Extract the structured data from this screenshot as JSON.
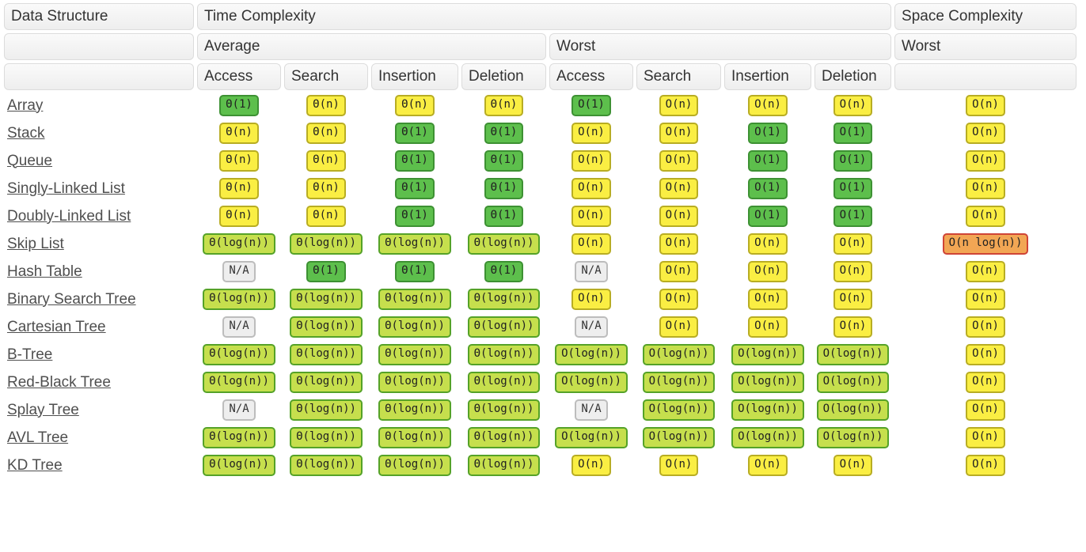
{
  "header": {
    "data_structure": "Data Structure",
    "time_complexity": "Time Complexity",
    "space_complexity": "Space Complexity",
    "average": "Average",
    "worst": "Worst",
    "space_worst": "Worst",
    "ops": [
      "Access",
      "Search",
      "Insertion",
      "Deletion"
    ]
  },
  "colors": {
    "green": "#5dbf4c",
    "yellow": "#faee43",
    "yellow_green": "#c6df4d",
    "orange": "#f2a654",
    "na_gray": "#eeeeee",
    "header_gray": "#f4f4f4",
    "link_text": "#4f4f4f"
  },
  "rows": [
    {
      "name": "Array",
      "average": [
        {
          "text": "Θ(1)",
          "level": "green"
        },
        {
          "text": "Θ(n)",
          "level": "yellow"
        },
        {
          "text": "Θ(n)",
          "level": "yellow"
        },
        {
          "text": "Θ(n)",
          "level": "yellow"
        }
      ],
      "worst": [
        {
          "text": "O(1)",
          "level": "green"
        },
        {
          "text": "O(n)",
          "level": "yellow"
        },
        {
          "text": "O(n)",
          "level": "yellow"
        },
        {
          "text": "O(n)",
          "level": "yellow"
        }
      ],
      "space": {
        "text": "O(n)",
        "level": "yellow"
      }
    },
    {
      "name": "Stack",
      "average": [
        {
          "text": "Θ(n)",
          "level": "yellow"
        },
        {
          "text": "Θ(n)",
          "level": "yellow"
        },
        {
          "text": "Θ(1)",
          "level": "green"
        },
        {
          "text": "Θ(1)",
          "level": "green"
        }
      ],
      "worst": [
        {
          "text": "O(n)",
          "level": "yellow"
        },
        {
          "text": "O(n)",
          "level": "yellow"
        },
        {
          "text": "O(1)",
          "level": "green"
        },
        {
          "text": "O(1)",
          "level": "green"
        }
      ],
      "space": {
        "text": "O(n)",
        "level": "yellow"
      }
    },
    {
      "name": "Queue",
      "average": [
        {
          "text": "Θ(n)",
          "level": "yellow"
        },
        {
          "text": "Θ(n)",
          "level": "yellow"
        },
        {
          "text": "Θ(1)",
          "level": "green"
        },
        {
          "text": "Θ(1)",
          "level": "green"
        }
      ],
      "worst": [
        {
          "text": "O(n)",
          "level": "yellow"
        },
        {
          "text": "O(n)",
          "level": "yellow"
        },
        {
          "text": "O(1)",
          "level": "green"
        },
        {
          "text": "O(1)",
          "level": "green"
        }
      ],
      "space": {
        "text": "O(n)",
        "level": "yellow"
      }
    },
    {
      "name": "Singly-Linked List",
      "average": [
        {
          "text": "Θ(n)",
          "level": "yellow"
        },
        {
          "text": "Θ(n)",
          "level": "yellow"
        },
        {
          "text": "Θ(1)",
          "level": "green"
        },
        {
          "text": "Θ(1)",
          "level": "green"
        }
      ],
      "worst": [
        {
          "text": "O(n)",
          "level": "yellow"
        },
        {
          "text": "O(n)",
          "level": "yellow"
        },
        {
          "text": "O(1)",
          "level": "green"
        },
        {
          "text": "O(1)",
          "level": "green"
        }
      ],
      "space": {
        "text": "O(n)",
        "level": "yellow"
      }
    },
    {
      "name": "Doubly-Linked List",
      "average": [
        {
          "text": "Θ(n)",
          "level": "yellow"
        },
        {
          "text": "Θ(n)",
          "level": "yellow"
        },
        {
          "text": "Θ(1)",
          "level": "green"
        },
        {
          "text": "Θ(1)",
          "level": "green"
        }
      ],
      "worst": [
        {
          "text": "O(n)",
          "level": "yellow"
        },
        {
          "text": "O(n)",
          "level": "yellow"
        },
        {
          "text": "O(1)",
          "level": "green"
        },
        {
          "text": "O(1)",
          "level": "green"
        }
      ],
      "space": {
        "text": "O(n)",
        "level": "yellow"
      }
    },
    {
      "name": "Skip List",
      "average": [
        {
          "text": "Θ(log(n))",
          "level": "ygreen"
        },
        {
          "text": "Θ(log(n))",
          "level": "ygreen"
        },
        {
          "text": "Θ(log(n))",
          "level": "ygreen"
        },
        {
          "text": "Θ(log(n))",
          "level": "ygreen"
        }
      ],
      "worst": [
        {
          "text": "O(n)",
          "level": "yellow"
        },
        {
          "text": "O(n)",
          "level": "yellow"
        },
        {
          "text": "O(n)",
          "level": "yellow"
        },
        {
          "text": "O(n)",
          "level": "yellow"
        }
      ],
      "space": {
        "text": "O(n log(n))",
        "level": "orange"
      }
    },
    {
      "name": "Hash Table",
      "average": [
        {
          "text": "N/A",
          "level": "gray"
        },
        {
          "text": "Θ(1)",
          "level": "green"
        },
        {
          "text": "Θ(1)",
          "level": "green"
        },
        {
          "text": "Θ(1)",
          "level": "green"
        }
      ],
      "worst": [
        {
          "text": "N/A",
          "level": "gray"
        },
        {
          "text": "O(n)",
          "level": "yellow"
        },
        {
          "text": "O(n)",
          "level": "yellow"
        },
        {
          "text": "O(n)",
          "level": "yellow"
        }
      ],
      "space": {
        "text": "O(n)",
        "level": "yellow"
      }
    },
    {
      "name": "Binary Search Tree",
      "average": [
        {
          "text": "Θ(log(n))",
          "level": "ygreen"
        },
        {
          "text": "Θ(log(n))",
          "level": "ygreen"
        },
        {
          "text": "Θ(log(n))",
          "level": "ygreen"
        },
        {
          "text": "Θ(log(n))",
          "level": "ygreen"
        }
      ],
      "worst": [
        {
          "text": "O(n)",
          "level": "yellow"
        },
        {
          "text": "O(n)",
          "level": "yellow"
        },
        {
          "text": "O(n)",
          "level": "yellow"
        },
        {
          "text": "O(n)",
          "level": "yellow"
        }
      ],
      "space": {
        "text": "O(n)",
        "level": "yellow"
      }
    },
    {
      "name": "Cartesian Tree",
      "average": [
        {
          "text": "N/A",
          "level": "gray"
        },
        {
          "text": "Θ(log(n))",
          "level": "ygreen"
        },
        {
          "text": "Θ(log(n))",
          "level": "ygreen"
        },
        {
          "text": "Θ(log(n))",
          "level": "ygreen"
        }
      ],
      "worst": [
        {
          "text": "N/A",
          "level": "gray"
        },
        {
          "text": "O(n)",
          "level": "yellow"
        },
        {
          "text": "O(n)",
          "level": "yellow"
        },
        {
          "text": "O(n)",
          "level": "yellow"
        }
      ],
      "space": {
        "text": "O(n)",
        "level": "yellow"
      }
    },
    {
      "name": "B-Tree",
      "average": [
        {
          "text": "Θ(log(n))",
          "level": "ygreen"
        },
        {
          "text": "Θ(log(n))",
          "level": "ygreen"
        },
        {
          "text": "Θ(log(n))",
          "level": "ygreen"
        },
        {
          "text": "Θ(log(n))",
          "level": "ygreen"
        }
      ],
      "worst": [
        {
          "text": "O(log(n))",
          "level": "ygreen"
        },
        {
          "text": "O(log(n))",
          "level": "ygreen"
        },
        {
          "text": "O(log(n))",
          "level": "ygreen"
        },
        {
          "text": "O(log(n))",
          "level": "ygreen"
        }
      ],
      "space": {
        "text": "O(n)",
        "level": "yellow"
      }
    },
    {
      "name": "Red-Black Tree",
      "average": [
        {
          "text": "Θ(log(n))",
          "level": "ygreen"
        },
        {
          "text": "Θ(log(n))",
          "level": "ygreen"
        },
        {
          "text": "Θ(log(n))",
          "level": "ygreen"
        },
        {
          "text": "Θ(log(n))",
          "level": "ygreen"
        }
      ],
      "worst": [
        {
          "text": "O(log(n))",
          "level": "ygreen"
        },
        {
          "text": "O(log(n))",
          "level": "ygreen"
        },
        {
          "text": "O(log(n))",
          "level": "ygreen"
        },
        {
          "text": "O(log(n))",
          "level": "ygreen"
        }
      ],
      "space": {
        "text": "O(n)",
        "level": "yellow"
      }
    },
    {
      "name": "Splay Tree",
      "average": [
        {
          "text": "N/A",
          "level": "gray"
        },
        {
          "text": "Θ(log(n))",
          "level": "ygreen"
        },
        {
          "text": "Θ(log(n))",
          "level": "ygreen"
        },
        {
          "text": "Θ(log(n))",
          "level": "ygreen"
        }
      ],
      "worst": [
        {
          "text": "N/A",
          "level": "gray"
        },
        {
          "text": "O(log(n))",
          "level": "ygreen"
        },
        {
          "text": "O(log(n))",
          "level": "ygreen"
        },
        {
          "text": "O(log(n))",
          "level": "ygreen"
        }
      ],
      "space": {
        "text": "O(n)",
        "level": "yellow"
      }
    },
    {
      "name": "AVL Tree",
      "average": [
        {
          "text": "Θ(log(n))",
          "level": "ygreen"
        },
        {
          "text": "Θ(log(n))",
          "level": "ygreen"
        },
        {
          "text": "Θ(log(n))",
          "level": "ygreen"
        },
        {
          "text": "Θ(log(n))",
          "level": "ygreen"
        }
      ],
      "worst": [
        {
          "text": "O(log(n))",
          "level": "ygreen"
        },
        {
          "text": "O(log(n))",
          "level": "ygreen"
        },
        {
          "text": "O(log(n))",
          "level": "ygreen"
        },
        {
          "text": "O(log(n))",
          "level": "ygreen"
        }
      ],
      "space": {
        "text": "O(n)",
        "level": "yellow"
      }
    },
    {
      "name": "KD Tree",
      "average": [
        {
          "text": "Θ(log(n))",
          "level": "ygreen"
        },
        {
          "text": "Θ(log(n))",
          "level": "ygreen"
        },
        {
          "text": "Θ(log(n))",
          "level": "ygreen"
        },
        {
          "text": "Θ(log(n))",
          "level": "ygreen"
        }
      ],
      "worst": [
        {
          "text": "O(n)",
          "level": "yellow"
        },
        {
          "text": "O(n)",
          "level": "yellow"
        },
        {
          "text": "O(n)",
          "level": "yellow"
        },
        {
          "text": "O(n)",
          "level": "yellow"
        }
      ],
      "space": {
        "text": "O(n)",
        "level": "yellow"
      }
    }
  ]
}
